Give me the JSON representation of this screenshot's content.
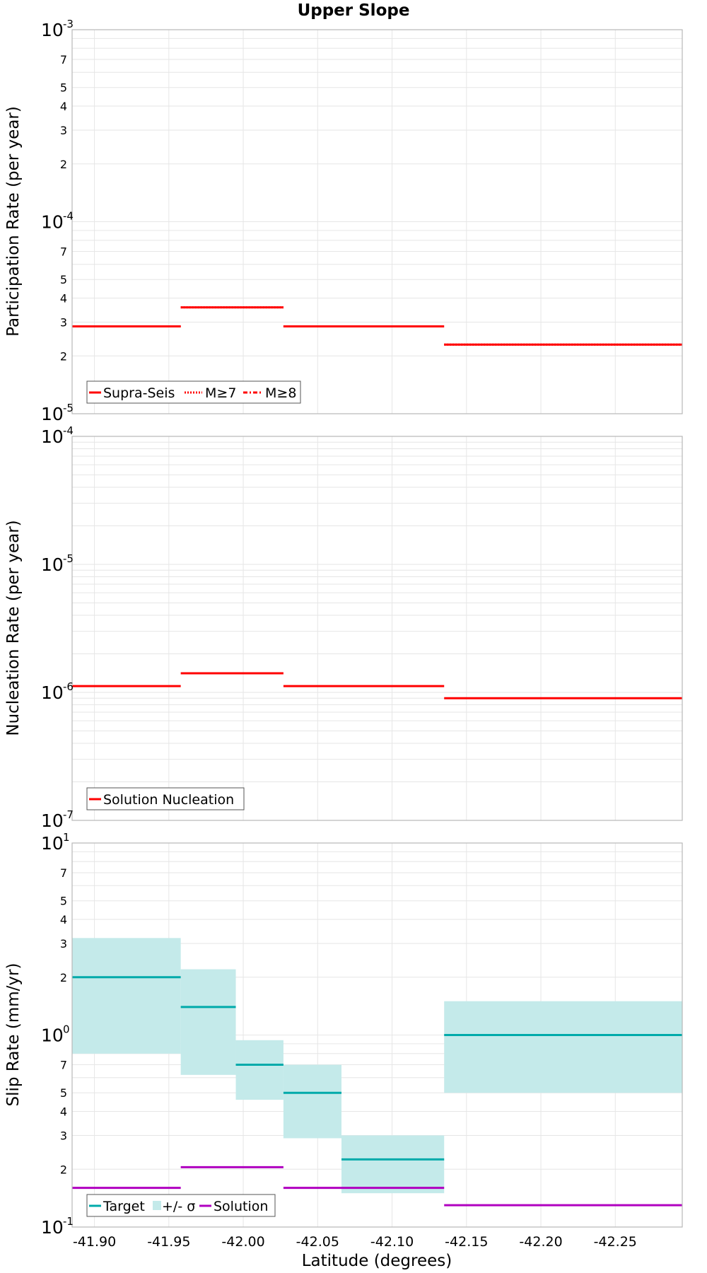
{
  "title": "Upper Slope",
  "colors": {
    "red": "#ff0000",
    "teal": "#00aaaa",
    "band": "#c4eaea",
    "magenta": "#b000c0",
    "grid": "#e6e6e6",
    "frame": "#b8b8b8"
  },
  "chart_data": [
    {
      "type": "line",
      "name": "participation",
      "ylabel": "Participation Rate (per year)",
      "yscale": "log",
      "ylim": [
        1e-05,
        0.001
      ],
      "xlim": [
        -41.885,
        -42.295
      ],
      "major_ticks": [
        {
          "base": "10",
          "exp": "-5"
        },
        {
          "base": "10",
          "exp": "-4"
        },
        {
          "base": "10",
          "exp": "-3"
        }
      ],
      "minor_ticks": [
        {
          "value": 2e-05,
          "label": "2"
        },
        {
          "value": 3e-05,
          "label": "3"
        },
        {
          "value": 4e-05,
          "label": "4"
        },
        {
          "value": 5e-05,
          "label": "5"
        },
        {
          "value": 7e-05,
          "label": "7"
        },
        {
          "value": 0.0002,
          "label": "2"
        },
        {
          "value": 0.0003,
          "label": "3"
        },
        {
          "value": 0.0004,
          "label": "4"
        },
        {
          "value": 0.0005,
          "label": "5"
        },
        {
          "value": 0.0007,
          "label": "7"
        }
      ],
      "series": [
        {
          "name": "Supra-Seis",
          "style": "solid",
          "segments": [
            {
              "x0": -41.885,
              "x1": -41.958,
              "y": 2.85e-05
            },
            {
              "x0": -41.958,
              "x1": -42.027,
              "y": 3.58e-05
            },
            {
              "x0": -42.027,
              "x1": -42.135,
              "y": 2.85e-05
            },
            {
              "x0": -42.135,
              "x1": -42.295,
              "y": 2.29e-05
            }
          ]
        },
        {
          "name": "M≥7",
          "style": "dotted",
          "segments": [
            {
              "x0": -41.885,
              "x1": -41.958,
              "y": 2.85e-05
            },
            {
              "x0": -41.958,
              "x1": -42.027,
              "y": 3.58e-05
            },
            {
              "x0": -42.027,
              "x1": -42.135,
              "y": 2.85e-05
            },
            {
              "x0": -42.135,
              "x1": -42.295,
              "y": 2.29e-05
            }
          ]
        },
        {
          "name": "M≥8",
          "style": "dashdot",
          "segments": []
        }
      ]
    },
    {
      "type": "line",
      "name": "nucleation",
      "ylabel": "Nucleation Rate (per year)",
      "yscale": "log",
      "ylim": [
        1e-07,
        0.0001
      ],
      "xlim": [
        -41.885,
        -42.295
      ],
      "major_ticks": [
        {
          "base": "10",
          "exp": "-7"
        },
        {
          "base": "10",
          "exp": "-6"
        },
        {
          "base": "10",
          "exp": "-5"
        },
        {
          "base": "10",
          "exp": "-4"
        }
      ],
      "minor_ticks": [],
      "series": [
        {
          "name": "Solution Nucleation",
          "style": "solid",
          "segments": [
            {
              "x0": -41.885,
              "x1": -41.958,
              "y": 1.12e-06
            },
            {
              "x0": -41.958,
              "x1": -42.027,
              "y": 1.41e-06
            },
            {
              "x0": -42.027,
              "x1": -42.135,
              "y": 1.12e-06
            },
            {
              "x0": -42.135,
              "x1": -42.295,
              "y": 9e-07
            }
          ]
        }
      ]
    },
    {
      "type": "line",
      "name": "slip",
      "ylabel": "Slip Rate (mm/yr)",
      "xlabel": "Latitude (degrees)",
      "yscale": "log",
      "ylim": [
        0.1,
        10
      ],
      "xlim": [
        -41.885,
        -42.295
      ],
      "xticks": [
        -41.9,
        -41.95,
        -42.0,
        -42.05,
        -42.1,
        -42.15,
        -42.2,
        -42.25
      ],
      "xtick_labels": [
        "-41.90",
        "-41.95",
        "-42.00",
        "-42.05",
        "-42.10",
        "-42.15",
        "-42.20",
        "-42.25"
      ],
      "major_ticks": [
        {
          "base": "10",
          "exp": "-1"
        },
        {
          "base": "10",
          "exp": "0"
        },
        {
          "base": "10",
          "exp": "1"
        }
      ],
      "minor_ticks": [
        {
          "value": 0.2,
          "label": "2"
        },
        {
          "value": 0.3,
          "label": "3"
        },
        {
          "value": 0.4,
          "label": "4"
        },
        {
          "value": 0.5,
          "label": "5"
        },
        {
          "value": 0.7,
          "label": "7"
        },
        {
          "value": 2,
          "label": "2"
        },
        {
          "value": 3,
          "label": "3"
        },
        {
          "value": 4,
          "label": "4"
        },
        {
          "value": 5,
          "label": "5"
        },
        {
          "value": 7,
          "label": "7"
        }
      ],
      "series": [
        {
          "name": "Target",
          "style": "solid",
          "segments": [
            {
              "x0": -41.885,
              "x1": -41.958,
              "y": 2.0,
              "lo": 0.8,
              "hi": 3.2
            },
            {
              "x0": -41.958,
              "x1": -41.995,
              "y": 1.4,
              "lo": 0.62,
              "hi": 2.2
            },
            {
              "x0": -41.995,
              "x1": -42.027,
              "y": 0.7,
              "lo": 0.46,
              "hi": 0.94
            },
            {
              "x0": -42.027,
              "x1": -42.066,
              "y": 0.5,
              "lo": 0.29,
              "hi": 0.7
            },
            {
              "x0": -42.066,
              "x1": -42.135,
              "y": 0.225,
              "lo": 0.15,
              "hi": 0.3
            },
            {
              "x0": -42.135,
              "x1": -42.295,
              "y": 1.0,
              "lo": 0.5,
              "hi": 1.5
            }
          ]
        },
        {
          "name": "+/- σ",
          "style": "band",
          "segments": []
        },
        {
          "name": "Solution",
          "style": "solid",
          "segments": [
            {
              "x0": -41.885,
              "x1": -41.958,
              "y": 0.16
            },
            {
              "x0": -41.958,
              "x1": -42.027,
              "y": 0.205
            },
            {
              "x0": -42.027,
              "x1": -42.135,
              "y": 0.16
            },
            {
              "x0": -42.135,
              "x1": -42.295,
              "y": 0.13
            }
          ]
        }
      ]
    }
  ]
}
